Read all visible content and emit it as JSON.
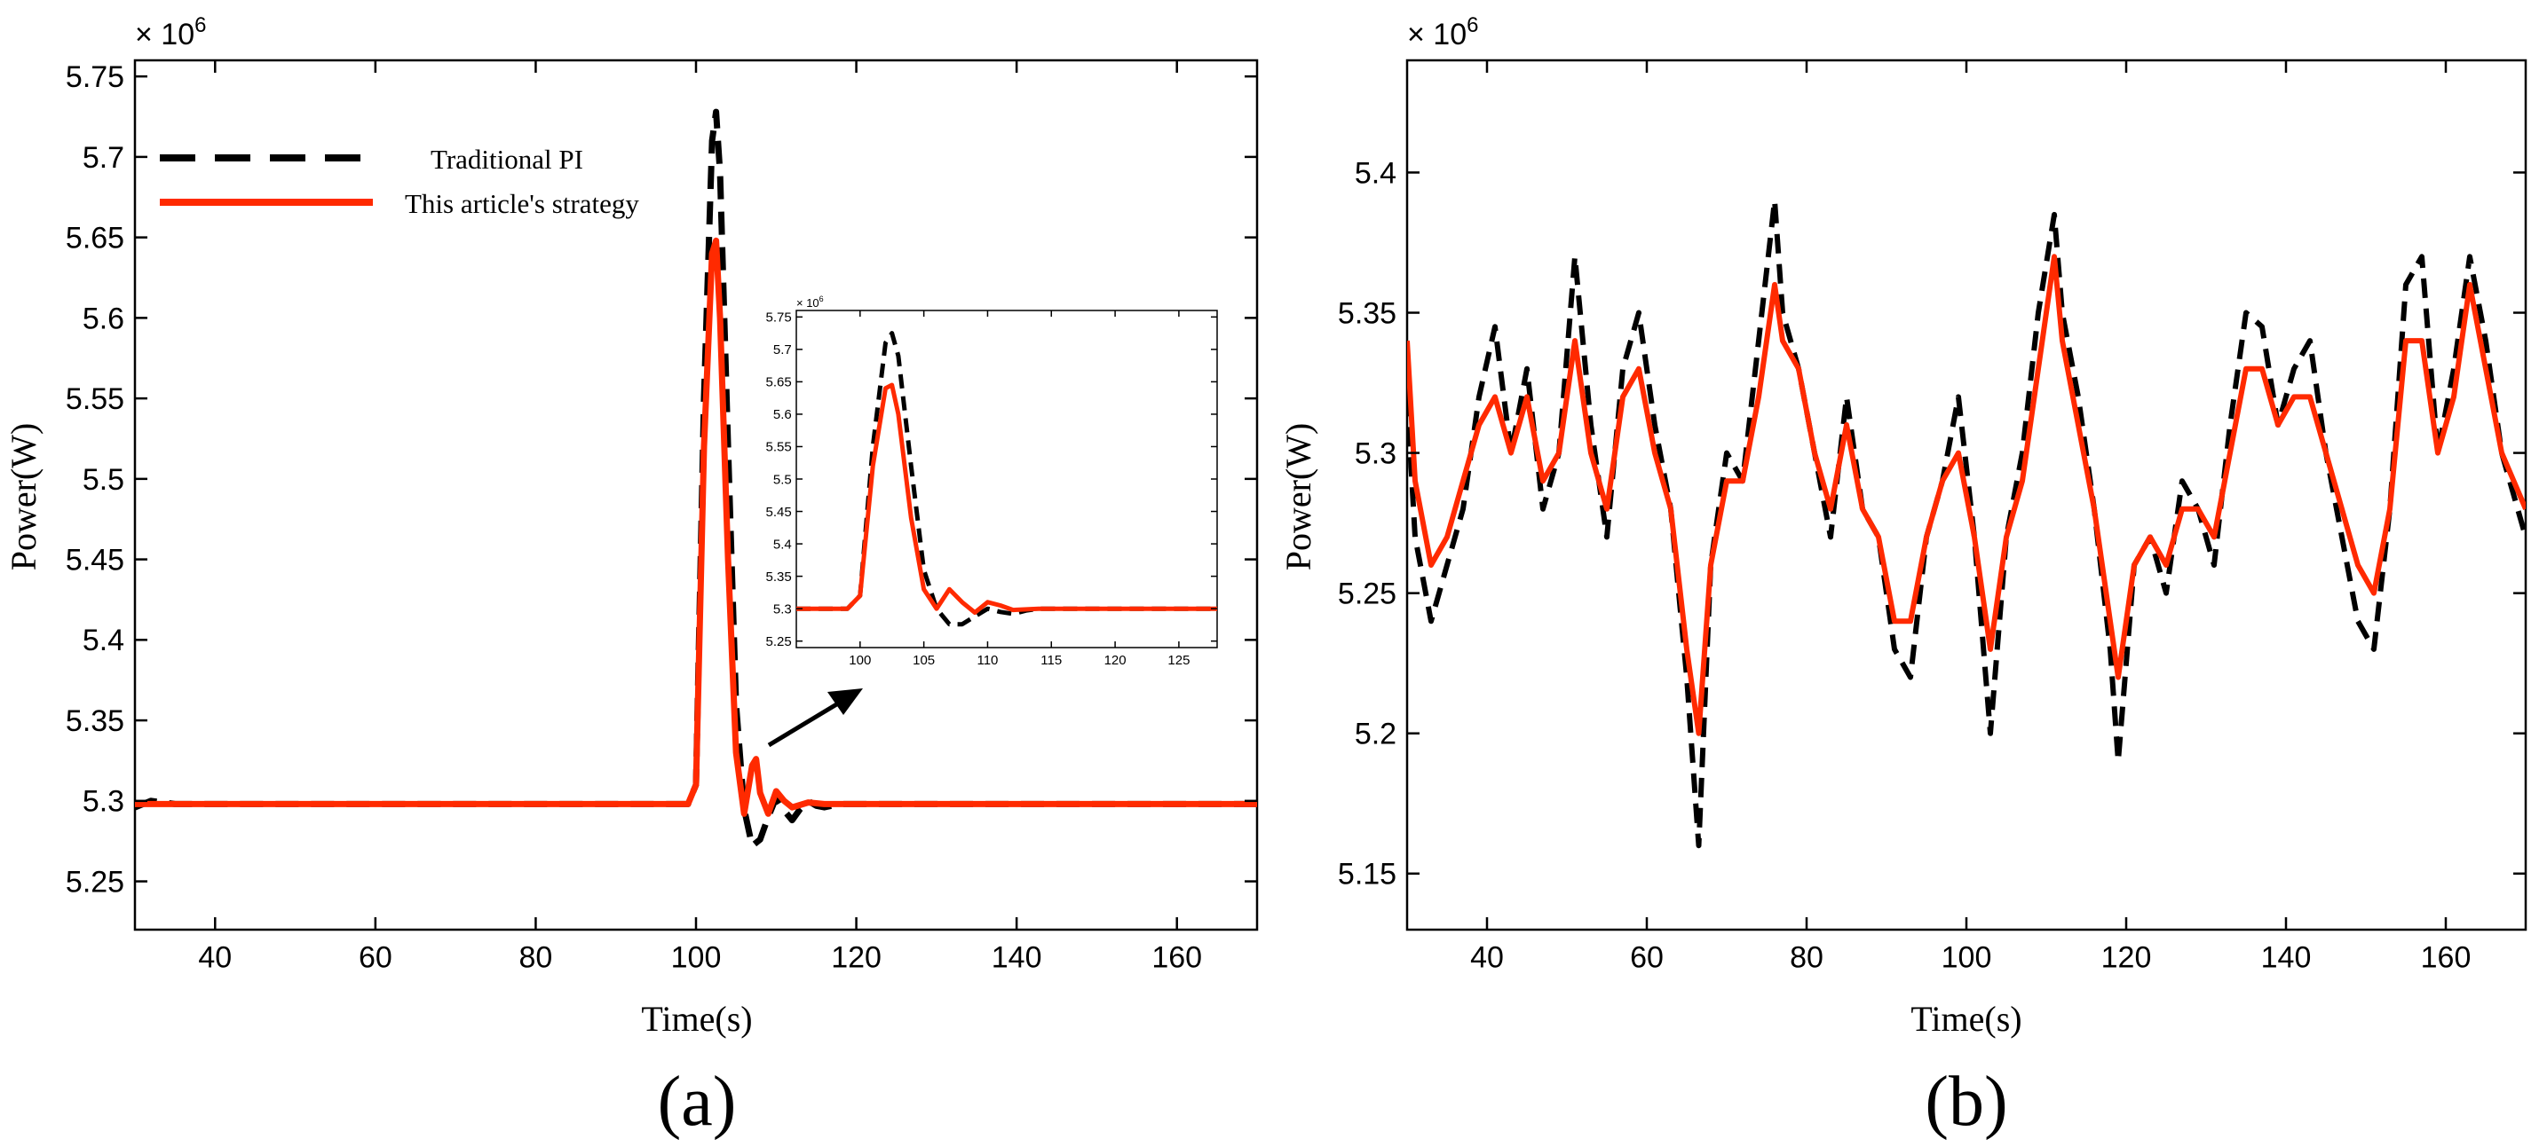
{
  "chart_data": [
    {
      "type": "line",
      "panel_label": "(a)",
      "xlabel": "Time(s)",
      "ylabel": "Power(W)",
      "y_exponent": "× 10",
      "y_exponent_power": "6",
      "xlim": [
        30,
        170
      ],
      "ylim": [
        5.22,
        5.76
      ],
      "xticks": [
        40,
        60,
        80,
        100,
        120,
        140,
        160
      ],
      "xtick_labels": [
        "40",
        "60",
        "80",
        "100",
        "120",
        "140",
        "160"
      ],
      "yticks": [
        5.25,
        5.3,
        5.35,
        5.4,
        5.45,
        5.5,
        5.55,
        5.6,
        5.65,
        5.7,
        5.75
      ],
      "ytick_labels": [
        "5.25",
        "5.3",
        "5.35",
        "5.4",
        "5.45",
        "5.5",
        "5.55",
        "5.6",
        "5.65",
        "5.7",
        "5.75"
      ],
      "legend": [
        "Traditional PI",
        "This article's strategy"
      ],
      "series": [
        {
          "name": "Traditional PI",
          "color": "#000000",
          "style": "dashed",
          "x": [
            30,
            32,
            35,
            40,
            60,
            80,
            99,
            100,
            101,
            102,
            102.5,
            103,
            104,
            105,
            106,
            107,
            108,
            109,
            110,
            111,
            112,
            113,
            114,
            115,
            116,
            118,
            120,
            140,
            170
          ],
          "y": [
            5.296,
            5.3,
            5.298,
            5.298,
            5.298,
            5.298,
            5.298,
            5.31,
            5.55,
            5.71,
            5.728,
            5.69,
            5.52,
            5.36,
            5.295,
            5.272,
            5.276,
            5.29,
            5.302,
            5.294,
            5.288,
            5.295,
            5.3,
            5.297,
            5.296,
            5.298,
            5.298,
            5.298,
            5.298
          ]
        },
        {
          "name": "This article's strategy",
          "color": "#ff2a00",
          "style": "solid",
          "x": [
            30,
            40,
            60,
            80,
            99,
            100,
            101,
            102,
            102.5,
            103,
            104,
            105,
            106,
            107,
            107.5,
            108,
            109,
            110,
            111,
            112,
            114,
            116,
            120,
            140,
            170
          ],
          "y": [
            5.298,
            5.298,
            5.298,
            5.298,
            5.298,
            5.31,
            5.52,
            5.64,
            5.648,
            5.6,
            5.45,
            5.33,
            5.292,
            5.322,
            5.326,
            5.305,
            5.292,
            5.306,
            5.3,
            5.296,
            5.299,
            5.298,
            5.298,
            5.298,
            5.298
          ]
        }
      ],
      "inset": {
        "xlim": [
          95,
          128
        ],
        "ylim": [
          5.24,
          5.76
        ],
        "xticks": [
          100,
          105,
          110,
          115,
          120,
          125
        ],
        "xtick_labels": [
          "100",
          "105",
          "110",
          "115",
          "120",
          "125"
        ],
        "yticks": [
          5.25,
          5.3,
          5.35,
          5.4,
          5.45,
          5.5,
          5.55,
          5.6,
          5.65,
          5.7,
          5.75
        ],
        "ytick_labels": [
          "5.25",
          "5.3",
          "5.35",
          "5.4",
          "5.45",
          "5.5",
          "5.55",
          "5.6",
          "5.65",
          "5.7",
          "5.75"
        ],
        "y_exponent": "× 10",
        "y_exponent_power": "6",
        "series": [
          {
            "name": "Traditional PI",
            "color": "#000000",
            "style": "dashed",
            "x": [
              95,
              99,
              100,
              101,
              102,
              102.5,
              103,
              104,
              105,
              106,
              107,
              108,
              109,
              110,
              111,
              112,
              113,
              114,
              116,
              120,
              128
            ],
            "y": [
              5.3,
              5.3,
              5.32,
              5.55,
              5.71,
              5.725,
              5.69,
              5.52,
              5.36,
              5.3,
              5.276,
              5.276,
              5.288,
              5.3,
              5.295,
              5.292,
              5.297,
              5.3,
              5.3,
              5.3,
              5.3
            ]
          },
          {
            "name": "This article's strategy",
            "color": "#ff2a00",
            "style": "solid",
            "x": [
              95,
              99,
              100,
              101,
              102,
              102.5,
              103,
              104,
              105,
              106,
              107,
              108,
              109,
              110,
              111,
              112,
              114,
              116,
              120,
              128
            ],
            "y": [
              5.3,
              5.3,
              5.32,
              5.52,
              5.64,
              5.645,
              5.6,
              5.44,
              5.33,
              5.3,
              5.33,
              5.31,
              5.294,
              5.31,
              5.305,
              5.298,
              5.3,
              5.3,
              5.3,
              5.3
            ]
          }
        ]
      }
    },
    {
      "type": "line",
      "panel_label": "(b)",
      "xlabel": "Time(s)",
      "ylabel": "Power(W)",
      "y_exponent": "× 10",
      "y_exponent_power": "6",
      "xlim": [
        30,
        170
      ],
      "ylim": [
        5.13,
        5.44
      ],
      "xticks": [
        40,
        60,
        80,
        100,
        120,
        140,
        160
      ],
      "xtick_labels": [
        "40",
        "60",
        "80",
        "100",
        "120",
        "140",
        "160"
      ],
      "yticks": [
        5.15,
        5.2,
        5.25,
        5.3,
        5.35,
        5.4
      ],
      "ytick_labels": [
        "5.15",
        "5.2",
        "5.25",
        "5.3",
        "5.35",
        "5.4"
      ],
      "series": [
        {
          "name": "Traditional PI",
          "color": "#000000",
          "style": "dashed",
          "x": [
            30,
            31,
            33,
            35,
            37,
            39,
            41,
            43,
            45,
            47,
            49,
            51,
            53,
            55,
            57,
            59,
            61,
            63,
            65,
            66.5,
            68,
            70,
            72,
            74,
            76,
            77,
            79,
            81,
            83,
            85,
            87,
            89,
            91,
            93,
            95,
            97,
            99,
            101,
            103,
            105,
            107,
            109,
            111,
            112,
            114,
            116,
            118,
            119,
            121,
            123,
            125,
            127,
            129,
            131,
            133,
            135,
            137,
            139,
            141,
            143,
            145,
            147,
            149,
            151,
            153,
            155,
            157,
            159,
            161,
            163,
            165,
            167,
            170
          ],
          "y": [
            5.32,
            5.27,
            5.24,
            5.26,
            5.28,
            5.32,
            5.345,
            5.3,
            5.33,
            5.28,
            5.3,
            5.37,
            5.31,
            5.27,
            5.33,
            5.35,
            5.31,
            5.28,
            5.22,
            5.16,
            5.26,
            5.3,
            5.29,
            5.34,
            5.39,
            5.35,
            5.33,
            5.3,
            5.27,
            5.32,
            5.28,
            5.27,
            5.23,
            5.22,
            5.27,
            5.29,
            5.32,
            5.27,
            5.2,
            5.27,
            5.3,
            5.35,
            5.385,
            5.35,
            5.32,
            5.28,
            5.23,
            5.19,
            5.26,
            5.27,
            5.25,
            5.29,
            5.28,
            5.26,
            5.31,
            5.35,
            5.345,
            5.31,
            5.33,
            5.34,
            5.3,
            5.27,
            5.24,
            5.23,
            5.28,
            5.36,
            5.37,
            5.3,
            5.33,
            5.37,
            5.34,
            5.3,
            5.27
          ]
        },
        {
          "name": "This article's strategy",
          "color": "#ff2a00",
          "style": "solid",
          "x": [
            30,
            31,
            33,
            35,
            37,
            39,
            41,
            43,
            45,
            47,
            49,
            51,
            53,
            55,
            57,
            59,
            61,
            63,
            65,
            66.5,
            68,
            70,
            72,
            74,
            76,
            77,
            79,
            81,
            83,
            85,
            87,
            89,
            91,
            93,
            95,
            97,
            99,
            101,
            103,
            105,
            107,
            109,
            111,
            112,
            114,
            116,
            118,
            119,
            121,
            123,
            125,
            127,
            129,
            131,
            133,
            135,
            137,
            139,
            141,
            143,
            145,
            147,
            149,
            151,
            153,
            155,
            157,
            159,
            161,
            163,
            165,
            167,
            170
          ],
          "y": [
            5.34,
            5.29,
            5.26,
            5.27,
            5.29,
            5.31,
            5.32,
            5.3,
            5.32,
            5.29,
            5.3,
            5.34,
            5.3,
            5.28,
            5.32,
            5.33,
            5.3,
            5.28,
            5.23,
            5.2,
            5.26,
            5.29,
            5.29,
            5.32,
            5.36,
            5.34,
            5.33,
            5.3,
            5.28,
            5.31,
            5.28,
            5.27,
            5.24,
            5.24,
            5.27,
            5.29,
            5.3,
            5.27,
            5.23,
            5.27,
            5.29,
            5.33,
            5.37,
            5.34,
            5.31,
            5.28,
            5.24,
            5.22,
            5.26,
            5.27,
            5.26,
            5.28,
            5.28,
            5.27,
            5.3,
            5.33,
            5.33,
            5.31,
            5.32,
            5.32,
            5.3,
            5.28,
            5.26,
            5.25,
            5.28,
            5.34,
            5.34,
            5.3,
            5.32,
            5.36,
            5.33,
            5.3,
            5.28
          ]
        }
      ]
    }
  ]
}
